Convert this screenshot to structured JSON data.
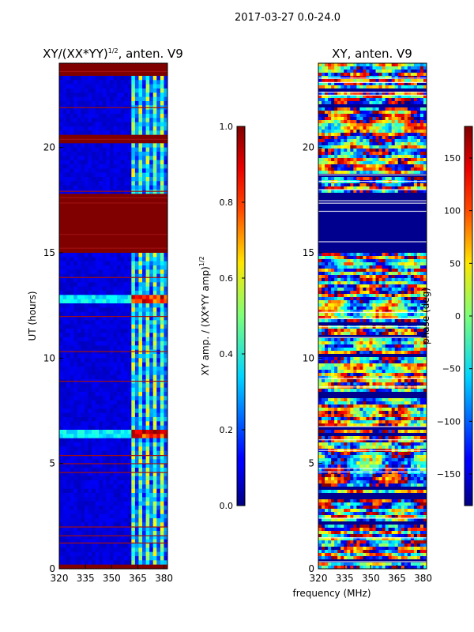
{
  "figure": {
    "suptitle": "2017-03-27 0.0-24.0",
    "shared_xlabel": "frequency (MHz)"
  },
  "chart_data": [
    {
      "type": "heatmap",
      "title": "XY/(XX*YY)",
      "title_exponent": "1/2",
      "title_suffix": ", anten. V9",
      "xlabel": "frequency (MHz)",
      "ylabel": "UT (hours)",
      "xlim": [
        320,
        382
      ],
      "ylim": [
        0,
        24
      ],
      "xticks": [
        320,
        335,
        350,
        365,
        380
      ],
      "yticks": [
        0,
        5,
        10,
        15,
        20
      ],
      "colormap": "jet",
      "colorbar": {
        "label": "XY amp. / (XX*YY amp)",
        "label_exponent": "1/2",
        "range": [
          0.0,
          1.0
        ],
        "ticks": [
          "0.0",
          "0.2",
          "0.4",
          "0.6",
          "0.8",
          "1.0"
        ]
      },
      "saturated_bands_hours": [
        [
          0,
          0.3
        ],
        [
          15,
          17.8
        ],
        [
          20.2,
          20.6
        ],
        [
          23.5,
          24
        ]
      ],
      "bright_bands_hours": [
        [
          6.2,
          6.5
        ],
        [
          12.6,
          12.9
        ]
      ]
    },
    {
      "type": "heatmap",
      "title": "XY, anten. V9",
      "xlabel": "frequency (MHz)",
      "ylabel": "",
      "xlim": [
        320,
        382
      ],
      "ylim": [
        0,
        24
      ],
      "xticks": [
        320,
        335,
        350,
        365,
        380
      ],
      "yticks": [
        0,
        5,
        10,
        15,
        20
      ],
      "colormap": "jet",
      "colorbar": {
        "label": "phase (deg)",
        "range": [
          -180,
          180
        ],
        "ticks": [
          "−150",
          "−100",
          "−50",
          "0",
          "50",
          "100",
          "150"
        ]
      },
      "flagged_bands_hours": [
        [
          15,
          17.8
        ],
        [
          3.4,
          3.6
        ]
      ]
    }
  ]
}
